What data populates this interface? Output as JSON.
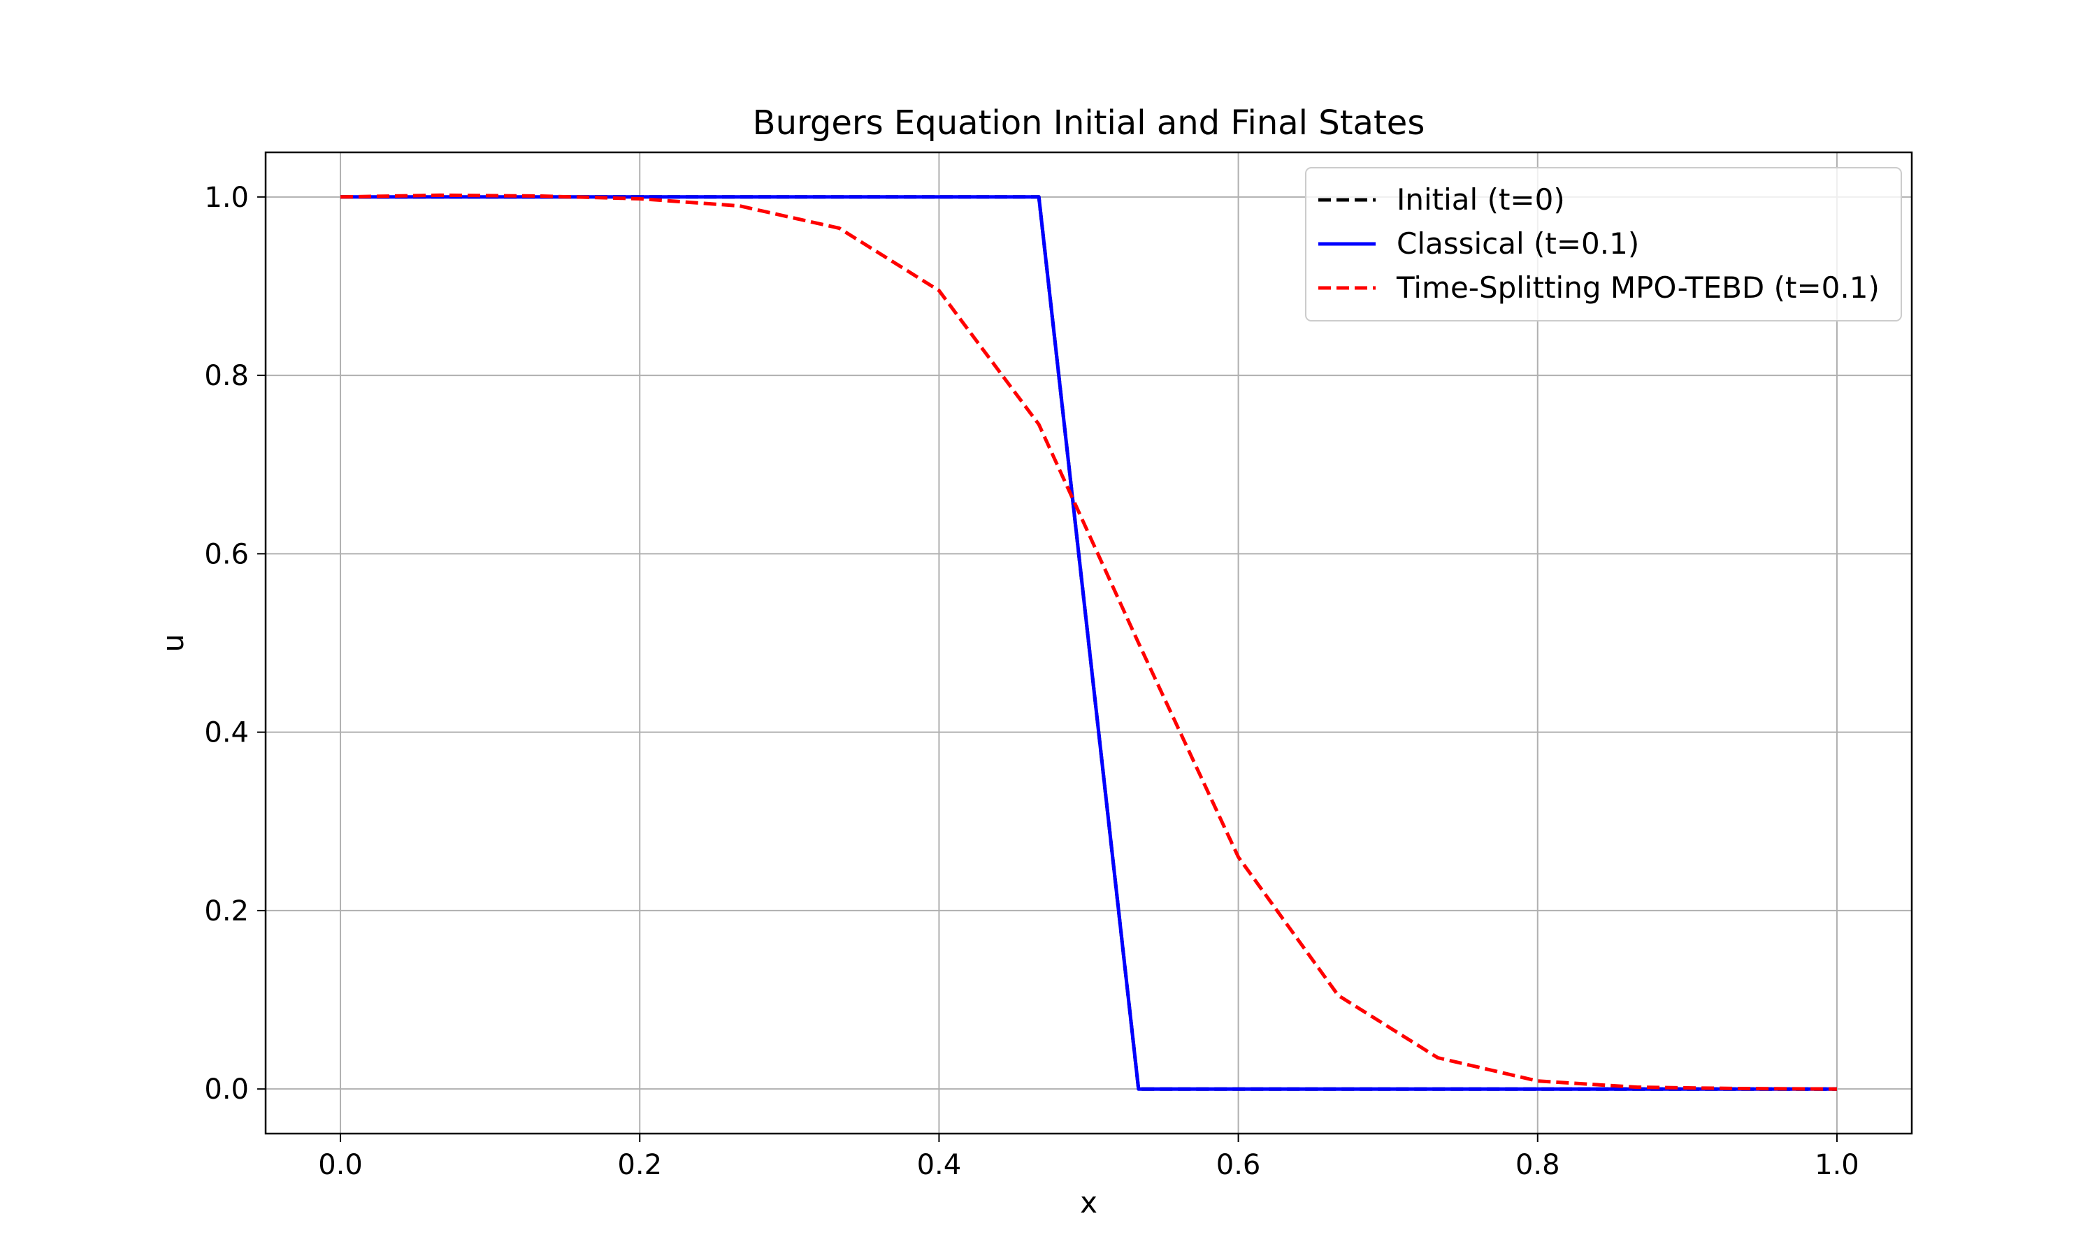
{
  "chart_data": {
    "type": "line",
    "title": "Burgers Equation Initial and Final States",
    "xlabel": "x",
    "ylabel": "u",
    "xlim": [
      -0.05,
      1.05
    ],
    "ylim": [
      -0.05,
      1.05
    ],
    "xticks": [
      0.0,
      0.2,
      0.4,
      0.6,
      0.8,
      1.0
    ],
    "xtick_labels": [
      "0.0",
      "0.2",
      "0.4",
      "0.6",
      "0.8",
      "1.0"
    ],
    "yticks": [
      0.0,
      0.2,
      0.4,
      0.6,
      0.8,
      1.0
    ],
    "ytick_labels": [
      "0.0",
      "0.2",
      "0.4",
      "0.6",
      "0.8",
      "1.0"
    ],
    "grid": true,
    "legend_position": "top-right",
    "series": [
      {
        "name": "Initial (t=0)",
        "color": "#000000",
        "style": "dashed",
        "x": [
          0.0,
          0.0667,
          0.1333,
          0.2,
          0.2667,
          0.3333,
          0.4,
          0.4667,
          0.5333,
          0.6,
          0.6667,
          0.7333,
          0.8,
          0.8667,
          0.9333,
          1.0
        ],
        "y": [
          1.0,
          1.0,
          1.0,
          1.0,
          1.0,
          1.0,
          1.0,
          1.0,
          0.0,
          0.0,
          0.0,
          0.0,
          0.0,
          0.0,
          0.0,
          0.0
        ]
      },
      {
        "name": "Classical (t=0.1)",
        "color": "#0000ff",
        "style": "solid",
        "x": [
          0.0,
          0.0667,
          0.1333,
          0.2,
          0.2667,
          0.3333,
          0.4,
          0.4667,
          0.5333,
          0.6,
          0.6667,
          0.7333,
          0.8,
          0.8667,
          0.9333,
          1.0
        ],
        "y": [
          1.0,
          1.0,
          1.0,
          1.0,
          1.0,
          1.0,
          1.0,
          1.0,
          0.0,
          0.0,
          0.0,
          0.0,
          0.0,
          0.0,
          0.0,
          0.0
        ]
      },
      {
        "name": "Time-Splitting MPO-TEBD (t=0.1)",
        "color": "#ff0000",
        "style": "dashed",
        "x": [
          0.0,
          0.0667,
          0.1333,
          0.2,
          0.2667,
          0.3333,
          0.4,
          0.4667,
          0.5333,
          0.6,
          0.6667,
          0.7333,
          0.8,
          0.8667,
          0.9333,
          1.0
        ],
        "y": [
          1.0,
          1.002,
          1.001,
          0.998,
          0.99,
          0.965,
          0.895,
          0.745,
          0.5,
          0.26,
          0.105,
          0.035,
          0.009,
          0.002,
          0.0005,
          0.0
        ]
      }
    ]
  }
}
